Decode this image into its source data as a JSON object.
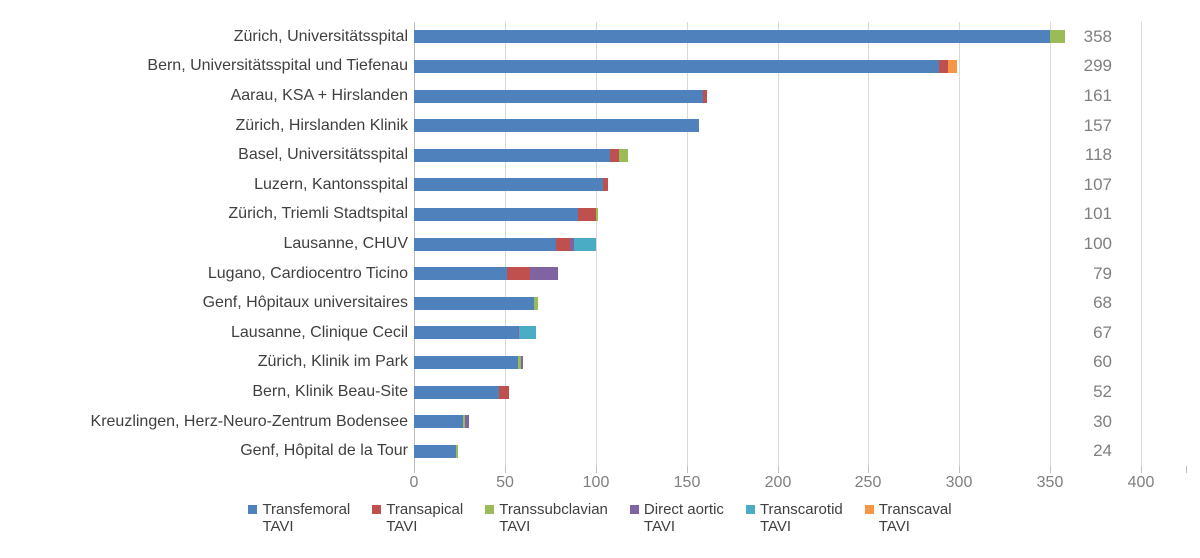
{
  "chart_data": {
    "type": "bar",
    "orientation": "horizontal",
    "stacked": true,
    "title": "",
    "xlabel": "",
    "ylabel": "",
    "xlim": [
      0,
      400
    ],
    "xticks": [
      0,
      50,
      100,
      150,
      200,
      250,
      300,
      350,
      400
    ],
    "grid": true,
    "legend_position": "bottom",
    "categories": [
      "Zürich, Universitätsspital",
      "Bern, Universitätsspital und Tiefenau",
      "Aarau, KSA + Hirslanden",
      "Zürich, Hirslanden Klinik",
      "Basel, Universitätsspital",
      "Luzern, Kantonsspital",
      "Zürich, Triemli Stadtspital",
      "Lausanne, CHUV",
      "Lugano, Cardiocentro Ticino",
      "Genf, Hôpitaux universitaires",
      "Lausanne, Clinique Cecil",
      "Zürich, Klinik im Park",
      "Bern, Klinik Beau-Site",
      "Kreuzlingen, Herz-Neuro-Zentrum Bodensee",
      "Genf, Hôpital de la Tour"
    ],
    "totals": [
      358,
      299,
      161,
      157,
      118,
      107,
      101,
      100,
      79,
      68,
      67,
      60,
      52,
      30,
      24
    ],
    "series": [
      {
        "name": "Transfemoral TAVI",
        "color": "#4F81BD",
        "values": [
          350,
          289,
          159,
          157,
          108,
          104,
          90,
          78,
          51,
          66,
          57,
          57,
          47,
          27,
          23
        ]
      },
      {
        "name": "Transapical TAVI",
        "color": "#C0504D",
        "values": [
          0,
          5,
          2,
          0,
          5,
          3,
          10,
          8,
          13,
          0,
          0,
          0,
          5,
          0,
          0
        ]
      },
      {
        "name": "Transsubclavian TAVI",
        "color": "#9BBB59",
        "values": [
          8,
          0,
          0,
          0,
          5,
          0,
          1,
          0,
          0,
          2,
          0,
          2,
          0,
          1,
          1
        ]
      },
      {
        "name": "Direct aortic TAVI",
        "color": "#8064A2",
        "values": [
          0,
          0,
          0,
          0,
          0,
          0,
          0,
          2,
          15,
          0,
          1,
          1,
          0,
          2,
          0
        ]
      },
      {
        "name": "Transcarotid TAVI",
        "color": "#4BACC6",
        "values": [
          0,
          0,
          0,
          0,
          0,
          0,
          0,
          12,
          0,
          0,
          9,
          0,
          0,
          0,
          0
        ]
      },
      {
        "name": "Transcaval TAVI",
        "color": "#F79646",
        "values": [
          0,
          5,
          0,
          0,
          0,
          0,
          0,
          0,
          0,
          0,
          0,
          0,
          0,
          0,
          0
        ]
      }
    ],
    "legend": [
      {
        "line1": "Transfemoral",
        "line2": "TAVI",
        "color": "#4F81BD"
      },
      {
        "line1": "Transapical",
        "line2": "TAVI",
        "color": "#C0504D"
      },
      {
        "line1": "Transsubclavian",
        "line2": "TAVI",
        "color": "#9BBB59"
      },
      {
        "line1": "Direct aortic",
        "line2": "TAVI",
        "color": "#8064A2"
      },
      {
        "line1": "Transcarotid",
        "line2": "TAVI",
        "color": "#4BACC6"
      },
      {
        "line1": "Transcaval",
        "line2": "TAVI",
        "color": "#F79646"
      }
    ],
    "colors": {
      "gridline": "#D9D9D9",
      "axis": "#BFBFBF",
      "category_text": "#404040",
      "value_text": "#7F7F7F",
      "background": "#FFFFFF"
    }
  }
}
